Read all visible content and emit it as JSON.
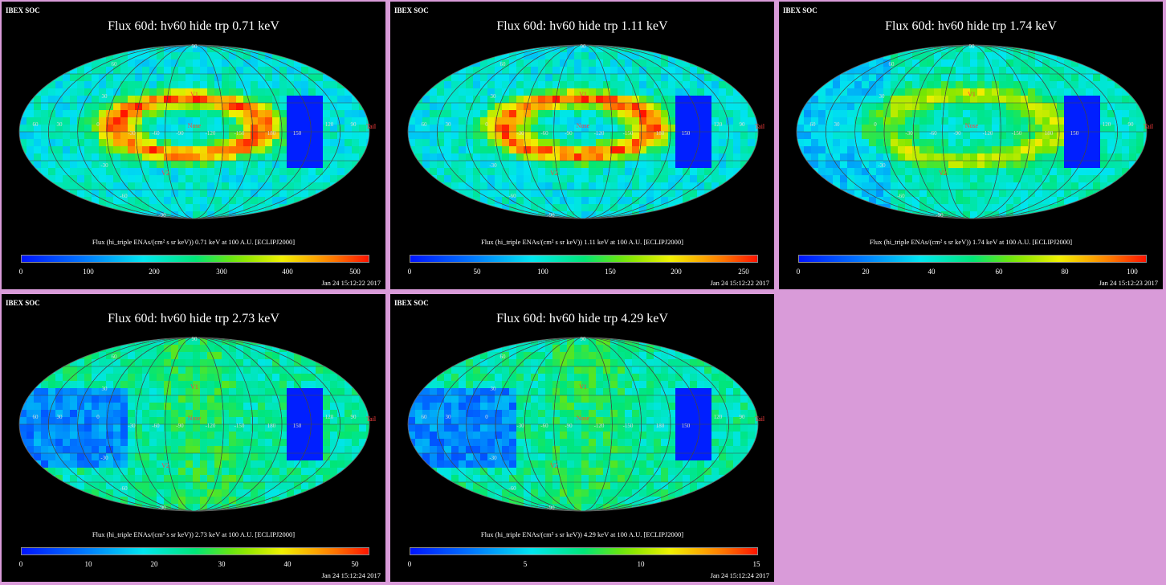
{
  "panels": [
    {
      "id": "p1",
      "title": "Flux 60d: hv60 hide trp 0.71 keV",
      "soc": "IBEX SOC",
      "caption": "Flux (hi_triple ENAs/(cm² s sr keV)) 0.71 keV at 100 A.U. [ECLIPJ2000]",
      "ticks": [
        "0",
        "100",
        "200",
        "300",
        "400",
        "500"
      ],
      "date": "Jan 24 15:12:22 2017",
      "style": "ribbon"
    },
    {
      "id": "p2",
      "title": "Flux 60d: hv60 hide trp 1.11 keV",
      "soc": "IBEX SOC",
      "caption": "Flux (hi_triple ENAs/(cm² s sr keV)) 1.11 keV at 100 A.U. [ECLIPJ2000]",
      "ticks": [
        "0",
        "50",
        "100",
        "150",
        "200",
        "250"
      ],
      "date": "Jan 24 15:12:22 2017",
      "style": "ribbon"
    },
    {
      "id": "p3",
      "title": "Flux 60d: hv60 hide trp 1.74 keV",
      "soc": "IBEX SOC",
      "caption": "Flux (hi_triple ENAs/(cm² s sr keV)) 1.74 keV at 100 A.U. [ECLIPJ2000]",
      "ticks": [
        "0",
        "20",
        "40",
        "60",
        "80",
        "100"
      ],
      "date": "Jan 24 15:12:23 2017",
      "style": "mid"
    },
    {
      "id": "p4",
      "title": "Flux 60d: hv60 hide trp 2.73 keV",
      "soc": "IBEX SOC",
      "caption": "Flux (hi_triple ENAs/(cm² s sr keV)) 2.73 keV at 100 A.U. [ECLIPJ2000]",
      "ticks": [
        "0",
        "10",
        "20",
        "30",
        "40",
        "50"
      ],
      "date": "Jan 24 15:12:24 2017",
      "style": "high"
    },
    {
      "id": "p5",
      "title": "Flux 60d: hv60 hide trp 4.29 keV",
      "soc": "IBEX SOC",
      "caption": "Flux (hi_triple ENAs/(cm² s sr keV)) 4.29 keV at 100 A.U. [ECLIPJ2000]",
      "ticks": [
        "0",
        "5",
        "10",
        "15"
      ],
      "date": "Jan 24 15:12:24 2017",
      "style": "high"
    }
  ],
  "map_labels": {
    "v1": "V1",
    "v2": "V2",
    "nose": "Nose",
    "tail": "Tail",
    "lon": [
      "60",
      "30",
      "0",
      "-30",
      "-60",
      "-90",
      "-120",
      "-150",
      "180",
      "150",
      "120",
      "90"
    ],
    "lat": [
      "60",
      "30",
      "-30",
      "-60",
      "-90",
      "90"
    ]
  },
  "colors": {
    "background": "#d99bd9",
    "panel": "#000000",
    "frame": "#d99bd9"
  }
}
